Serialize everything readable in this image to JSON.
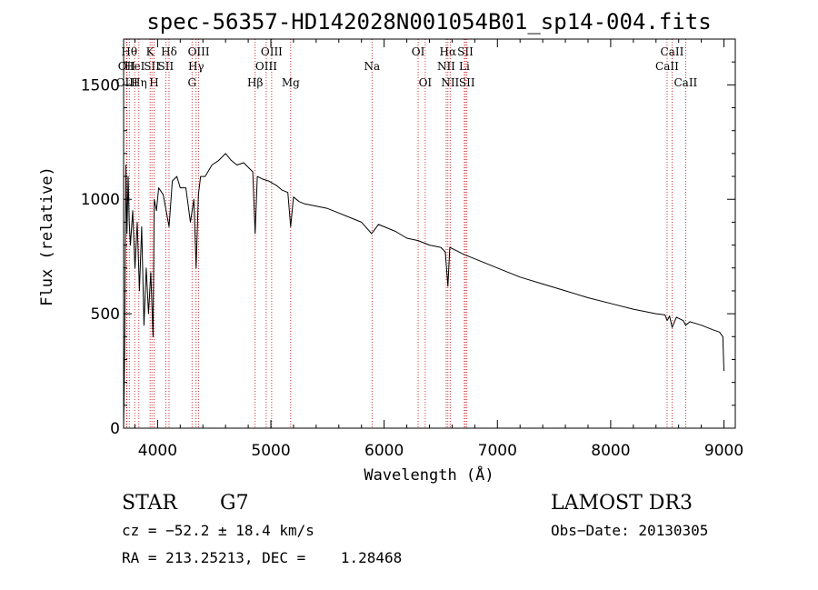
{
  "chart_data": {
    "type": "line",
    "title": "spec-56357-HD142028N001054B01_sp14-004.fits",
    "xlabel": "Wavelength (Å)",
    "ylabel": "Flux (relative)",
    "xlim": [
      3700,
      9100
    ],
    "ylim": [
      0,
      1700
    ],
    "xticks": [
      4000,
      5000,
      6000,
      7000,
      8000,
      9000
    ],
    "yticks": [
      0,
      500,
      1000,
      1500
    ],
    "series": [
      {
        "name": "flux",
        "x": [
          3700,
          3710,
          3720,
          3730,
          3740,
          3750,
          3760,
          3780,
          3800,
          3820,
          3840,
          3860,
          3880,
          3900,
          3920,
          3940,
          3960,
          3970,
          3990,
          4010,
          4050,
          4101,
          4130,
          4170,
          4200,
          4250,
          4290,
          4320,
          4340,
          4360,
          4380,
          4420,
          4480,
          4540,
          4600,
          4650,
          4700,
          4760,
          4800,
          4840,
          4861,
          4880,
          4920,
          4980,
          5050,
          5100,
          5150,
          5175,
          5200,
          5250,
          5300,
          5400,
          5500,
          5600,
          5700,
          5800,
          5890,
          5950,
          6000,
          6100,
          6200,
          6300,
          6400,
          6500,
          6540,
          6563,
          6580,
          6620,
          6700,
          6800,
          7000,
          7200,
          7400,
          7600,
          7800,
          8000,
          8200,
          8400,
          8480,
          8498,
          8520,
          8542,
          8580,
          8640,
          8662,
          8700,
          8800,
          8900,
          8960,
          8990,
          9000
        ],
        "y": [
          0,
          350,
          1150,
          850,
          1100,
          900,
          800,
          950,
          700,
          900,
          600,
          880,
          450,
          700,
          500,
          680,
          400,
          1000,
          950,
          1050,
          1020,
          880,
          1080,
          1100,
          1050,
          1050,
          900,
          1000,
          700,
          1020,
          1100,
          1100,
          1150,
          1170,
          1200,
          1170,
          1150,
          1160,
          1140,
          1120,
          850,
          1100,
          1090,
          1080,
          1060,
          1040,
          1030,
          880,
          1010,
          990,
          980,
          970,
          960,
          940,
          920,
          900,
          850,
          890,
          880,
          860,
          830,
          820,
          800,
          790,
          770,
          620,
          790,
          780,
          760,
          740,
          700,
          660,
          630,
          600,
          570,
          545,
          520,
          500,
          495,
          470,
          490,
          440,
          485,
          470,
          450,
          465,
          450,
          430,
          420,
          400,
          250
        ]
      }
    ],
    "lines": [
      {
        "label": "OII",
        "wl": 3727,
        "row": 2
      },
      {
        "label": "Hθ",
        "wl": 3750,
        "row": 1
      },
      {
        "label": "HeI",
        "wl": 3798,
        "row": 2
      },
      {
        "label": "OIII",
        "wl": 3730,
        "row": 3
      },
      {
        "label": "Hη",
        "wl": 3835,
        "row": 3
      },
      {
        "label": "K",
        "wl": 3934,
        "row": 1
      },
      {
        "label": "SII",
        "wl": 3950,
        "row": 2
      },
      {
        "label": "H",
        "wl": 3969,
        "row": 3
      },
      {
        "label": "Hδ",
        "wl": 4101,
        "row": 1
      },
      {
        "label": "SII",
        "wl": 4072,
        "row": 2
      },
      {
        "label": "OIII",
        "wl": 4363,
        "row": 1
      },
      {
        "label": "Hγ",
        "wl": 4340,
        "row": 2
      },
      {
        "label": "G",
        "wl": 4304,
        "row": 3
      },
      {
        "label": "OIII",
        "wl": 5007,
        "row": 1
      },
      {
        "label": "OIII",
        "wl": 4959,
        "row": 2
      },
      {
        "label": "Hβ",
        "wl": 4861,
        "row": 3
      },
      {
        "label": "Mg",
        "wl": 5175,
        "row": 3
      },
      {
        "label": "Na",
        "wl": 5893,
        "row": 2
      },
      {
        "label": "OI",
        "wl": 6300,
        "row": 1
      },
      {
        "label": "OI",
        "wl": 6363,
        "row": 3
      },
      {
        "label": "Hα",
        "wl": 6563,
        "row": 1
      },
      {
        "label": "SII",
        "wl": 6717,
        "row": 1
      },
      {
        "label": "NII",
        "wl": 6548,
        "row": 2
      },
      {
        "label": "Li",
        "wl": 6708,
        "row": 2
      },
      {
        "label": "NII",
        "wl": 6583,
        "row": 3
      },
      {
        "label": "SII",
        "wl": 6731,
        "row": 3
      },
      {
        "label": "CaII",
        "wl": 8542,
        "row": 1
      },
      {
        "label": "CaII",
        "wl": 8498,
        "row": 2
      },
      {
        "label": "CaII",
        "wl": 8662,
        "row": 3
      }
    ]
  },
  "info": {
    "class": "STAR",
    "subclass": "G7",
    "survey": "LAMOST DR3",
    "cz": "cz = −52.2 ± 18.4 km/s",
    "obsdate": "Obs−Date: 20130305",
    "radec": "RA = 213.25213, DEC =    1.28468"
  }
}
